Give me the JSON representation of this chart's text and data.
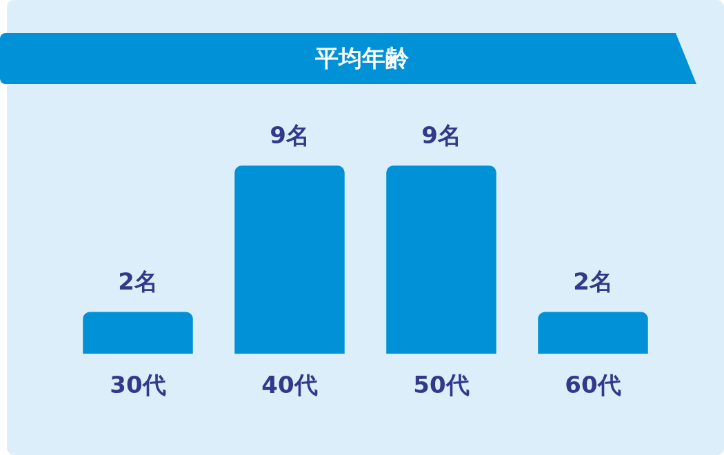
{
  "chart_data": {
    "type": "bar",
    "title": "平均年齢",
    "categories": [
      "30代",
      "40代",
      "50代",
      "60代"
    ],
    "values": [
      2,
      9,
      9,
      2
    ],
    "value_labels": [
      "2名",
      "9名",
      "9名",
      "2名"
    ],
    "color": "#0091d7"
  }
}
